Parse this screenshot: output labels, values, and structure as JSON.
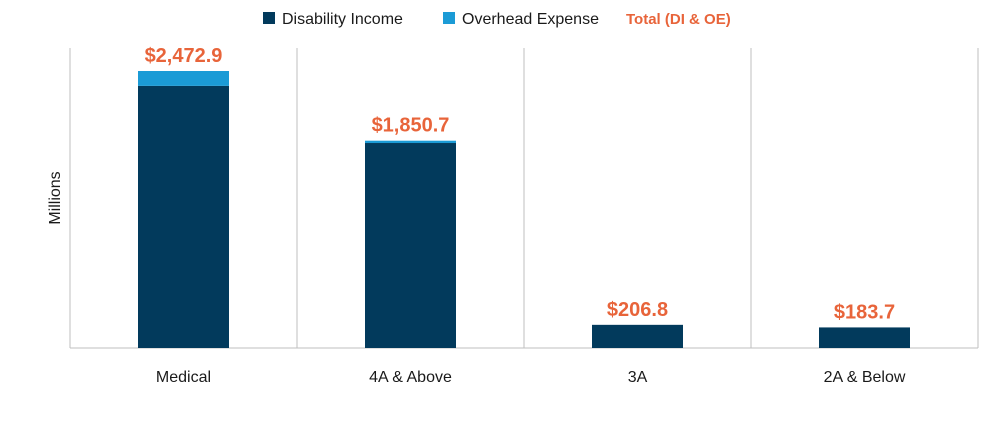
{
  "chart_data": {
    "type": "bar",
    "stacked": true,
    "title": "",
    "xlabel": "",
    "ylabel": "Millions",
    "ylim": [
      0,
      2500
    ],
    "grid": false,
    "legend_position": "top",
    "categories": [
      "Medical",
      "4A & Above",
      "3A",
      "2A & Below"
    ],
    "series": [
      {
        "name": "Disability Income",
        "color": "#023a5c",
        "values": [
          2340.0,
          1830.0,
          206.8,
          183.7
        ]
      },
      {
        "name": "Overhead Expense",
        "color": "#1b9bd6",
        "values": [
          132.9,
          20.7,
          0,
          0
        ]
      }
    ],
    "totals_legend": "Total (DI & OE)",
    "totals_color": "#e8643a",
    "totals": [
      2472.9,
      1850.7,
      206.8,
      183.7
    ],
    "total_labels": [
      "$2,472.9",
      "$1,850.7",
      "$206.8",
      "$183.7"
    ]
  }
}
